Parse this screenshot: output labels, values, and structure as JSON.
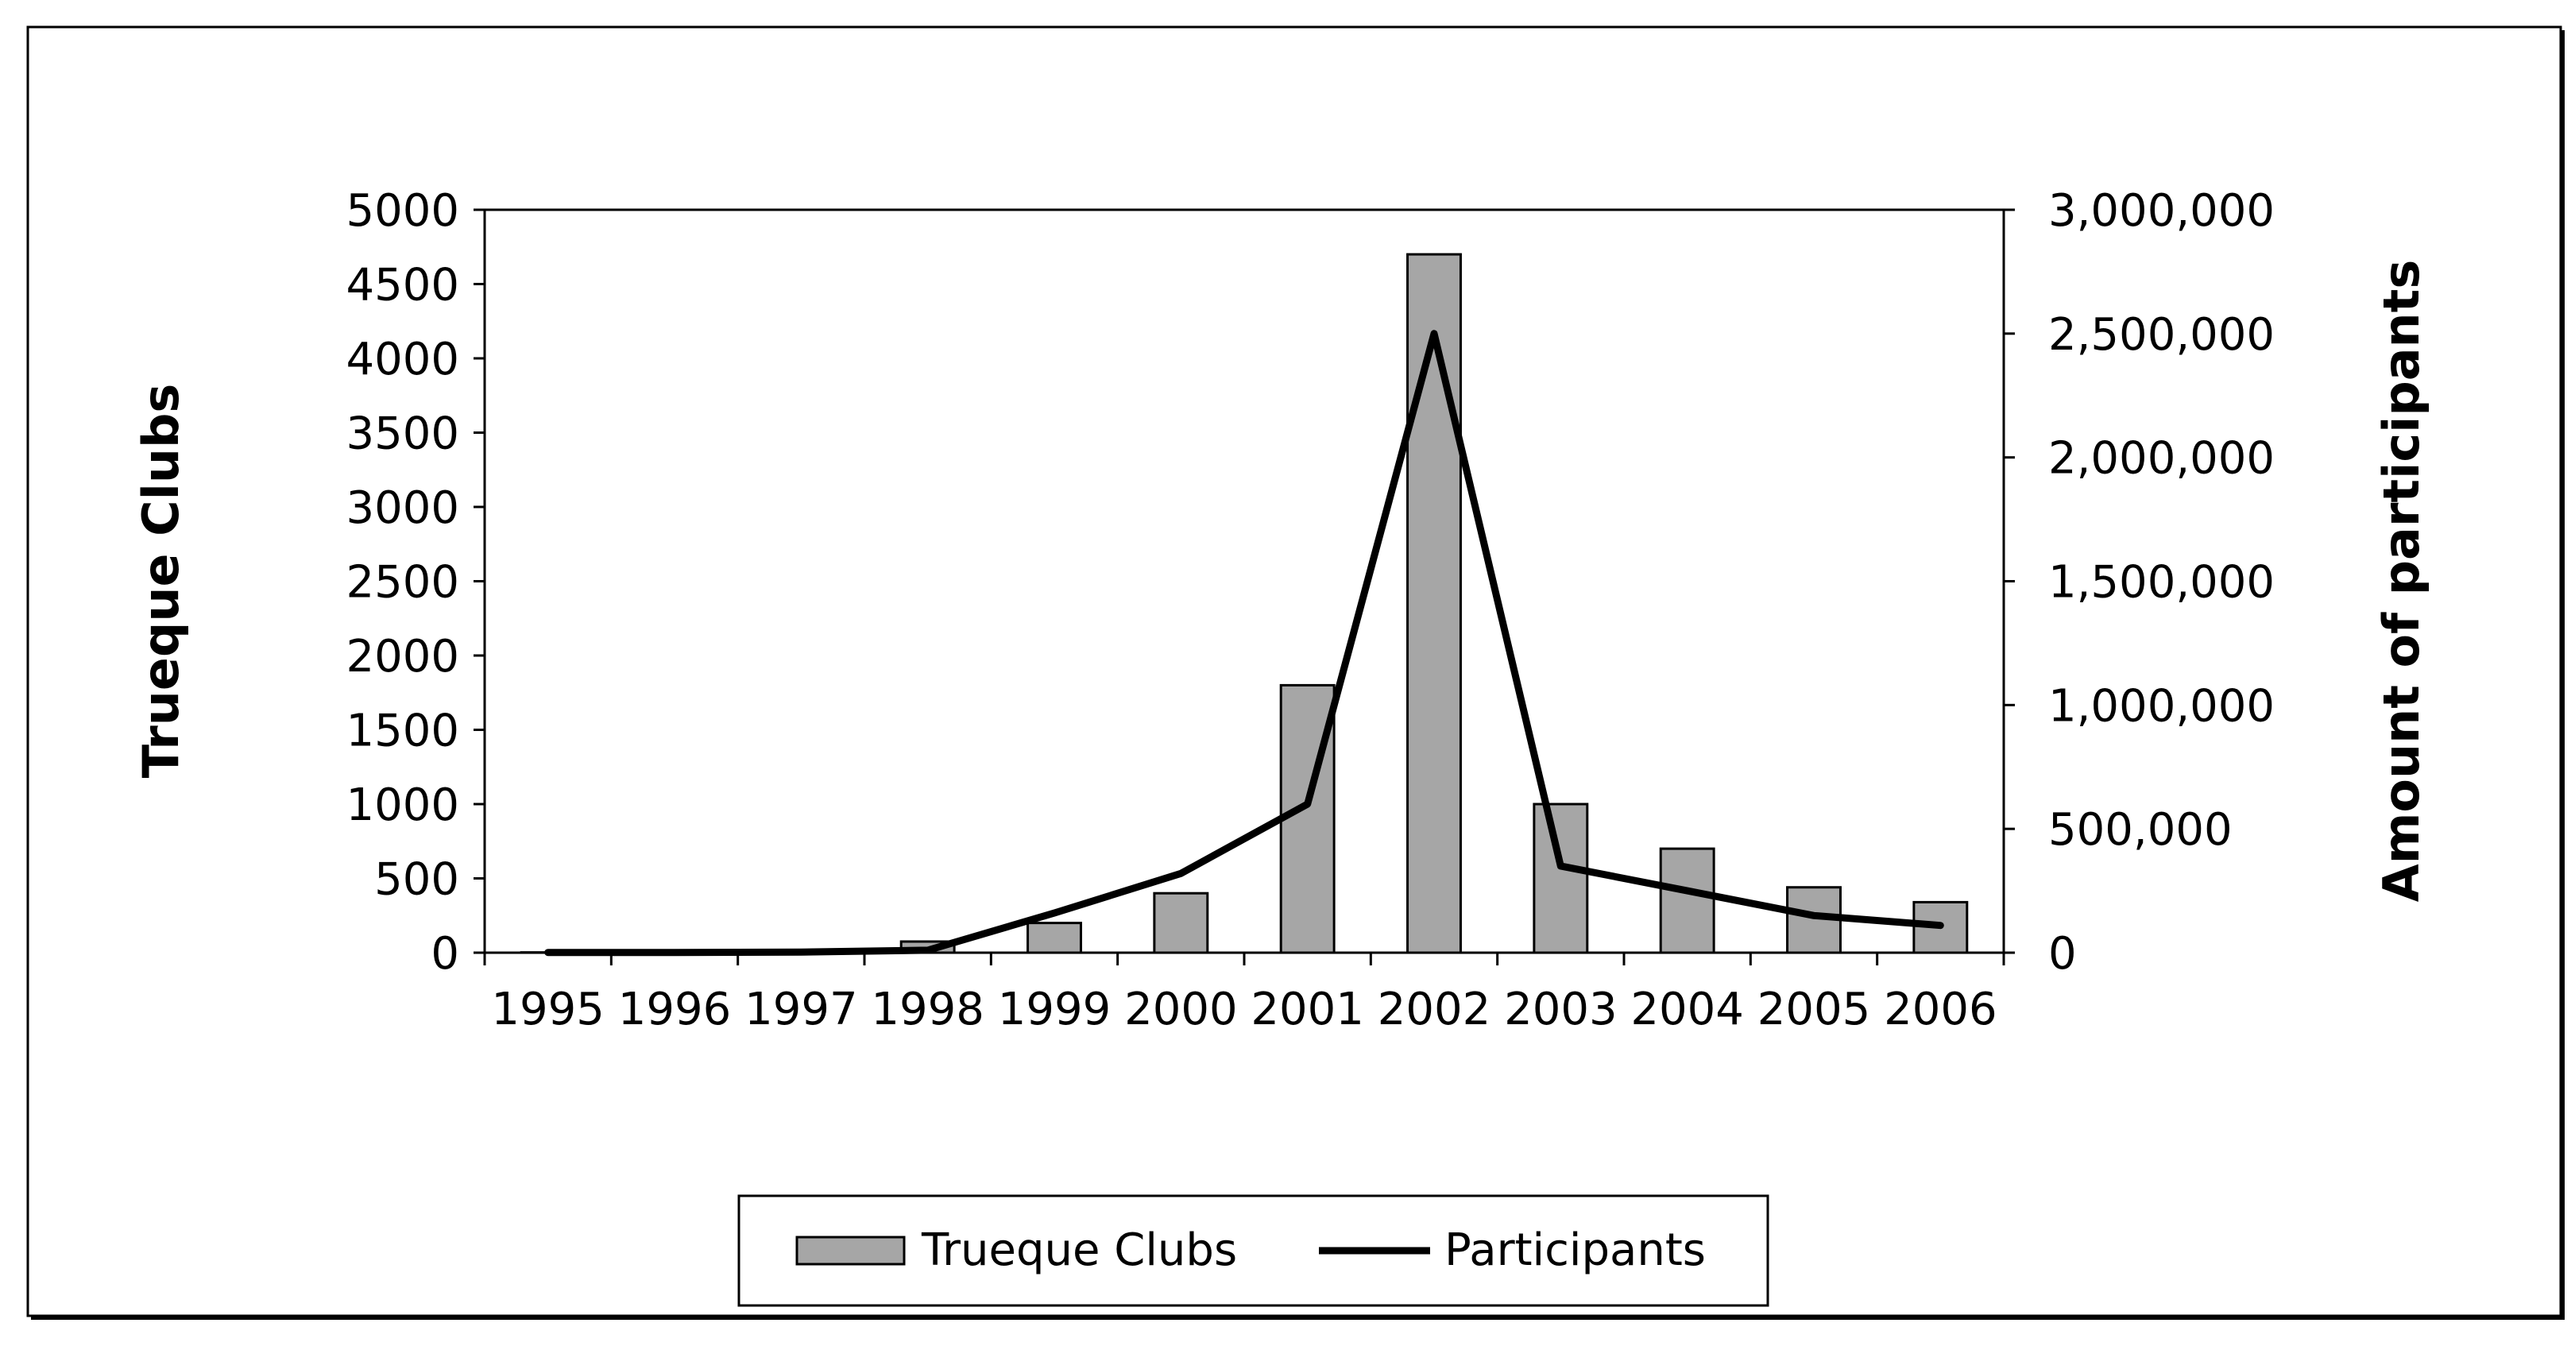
{
  "chart_data": {
    "type": "bar",
    "categories": [
      "1995",
      "1996",
      "1997",
      "1998",
      "1999",
      "2000",
      "2001",
      "2002",
      "2003",
      "2004",
      "2005",
      "2006"
    ],
    "series": [
      {
        "name": "Trueque Clubs",
        "type": "bar",
        "axis": "left",
        "values": [
          2,
          2,
          17,
          75,
          200,
          400,
          1800,
          4700,
          1000,
          700,
          440,
          340
        ]
      },
      {
        "name": "Participants",
        "type": "line",
        "axis": "right",
        "values": [
          1000,
          1000,
          2500,
          10000,
          160000,
          320000,
          600000,
          2500000,
          350000,
          250000,
          150000,
          110000
        ]
      }
    ],
    "ylabel": "Trueque Clubs",
    "y2label": "Amount of participants",
    "ylim": [
      0,
      5000
    ],
    "y2lim": [
      0,
      3000000
    ],
    "yticks": [
      "0",
      "500",
      "1000",
      "1500",
      "2000",
      "2500",
      "3000",
      "3500",
      "4000",
      "4500",
      "5000"
    ],
    "y2ticks": [
      "0",
      "500,000",
      "1,000,000",
      "1,500,000",
      "2,000,000",
      "2,500,000",
      "3,000,000"
    ],
    "grid": false,
    "legend": "bottom",
    "colors": {
      "bar": "#a6a6a6",
      "line": "#000000",
      "frame": "#000000"
    }
  }
}
